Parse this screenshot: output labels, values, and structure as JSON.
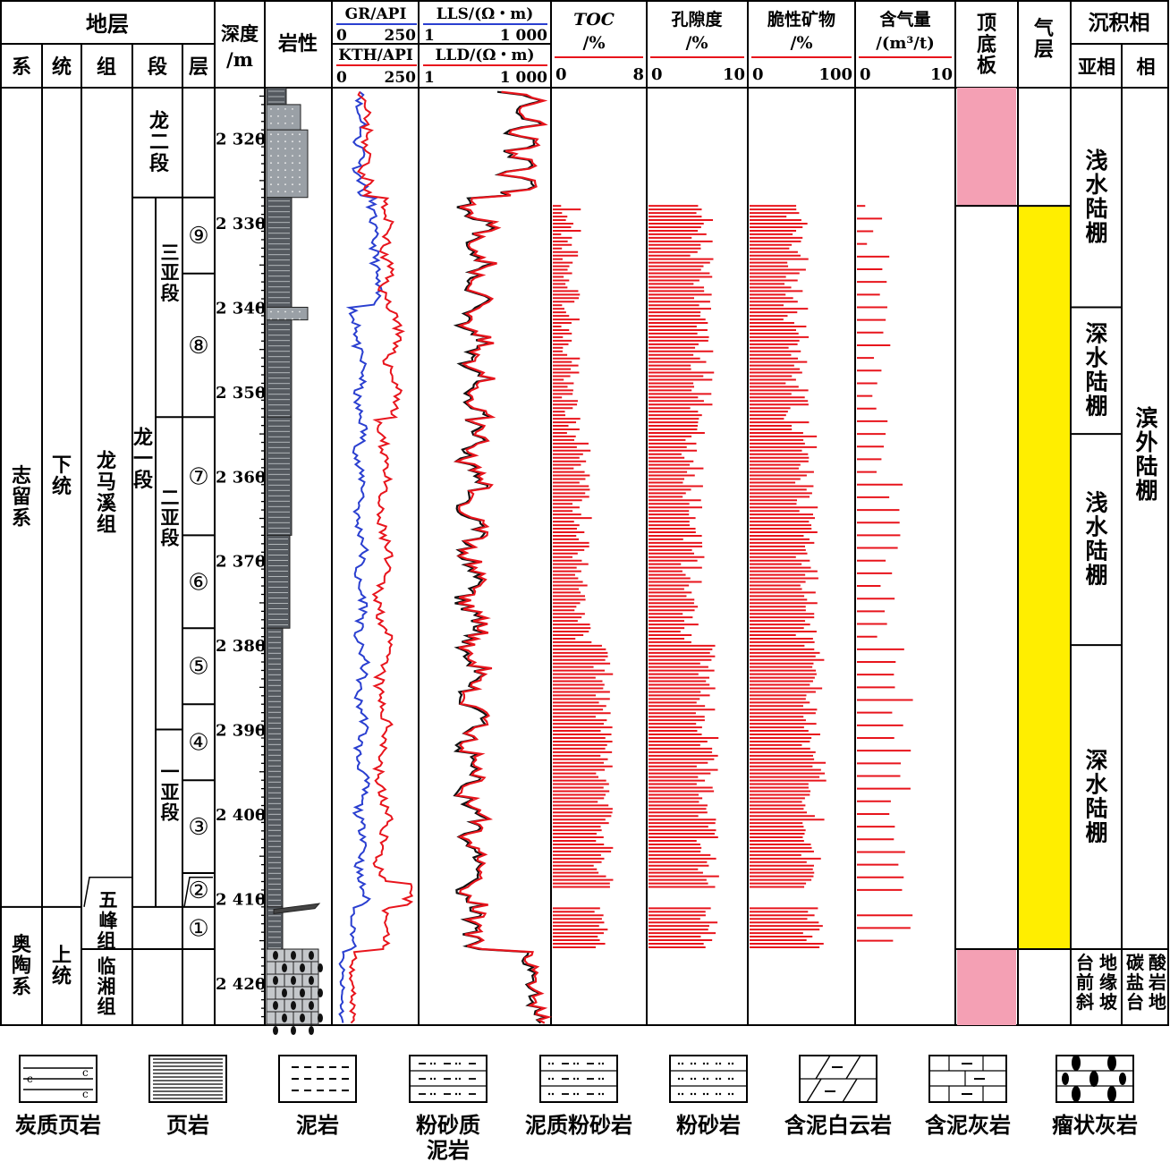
{
  "header": {
    "strata_group": "地层",
    "strata_cols": [
      "系",
      "统",
      "组",
      "段",
      "层"
    ],
    "depth": [
      "深度",
      "/m"
    ],
    "lithology": "岩性",
    "gr": "GR/API",
    "gr_range": [
      "0",
      "250"
    ],
    "kth": "KTH/API",
    "kth_range": [
      "0",
      "250"
    ],
    "lls": "LLS/(Ω・m)",
    "lls_range": [
      "1",
      "1 000"
    ],
    "lld": "LLD/(Ω・m)",
    "lld_range": [
      "1",
      "1 000"
    ],
    "toc": [
      "TOC",
      "/%"
    ],
    "toc_range": [
      "0",
      "8"
    ],
    "porosity": [
      "孔隙度",
      "/%"
    ],
    "porosity_range": [
      "0",
      "10"
    ],
    "brittle": [
      "脆性矿物",
      "/%"
    ],
    "brittle_range": [
      "0",
      "100"
    ],
    "gas": [
      "含气量",
      "/(m³/t)"
    ],
    "gas_range": [
      "0",
      "10"
    ],
    "roof_floor": "顶底板",
    "gas_layer": "气层",
    "facies_group": "沉积相",
    "subfacies": "亚相",
    "facies": "相"
  },
  "strata": {
    "system": [
      {
        "label": "志留系",
        "top": 2314,
        "bot": 2411
      },
      {
        "label": "奥陶系",
        "top": 2411,
        "bot": 2425
      }
    ],
    "series": [
      {
        "label": "下统",
        "top": 2314,
        "bot": 2411
      },
      {
        "label": "上统",
        "top": 2411,
        "bot": 2425
      }
    ],
    "formation": [
      {
        "label": "龙马溪组",
        "top": 2314,
        "bot": 2411
      },
      {
        "label": "五峰组",
        "top": 2411,
        "bot": 2416
      },
      {
        "label": "临湘组",
        "top": 2416,
        "bot": 2425
      }
    ],
    "member": [
      {
        "label": "龙二段",
        "top": 2314,
        "bot": 2327
      },
      {
        "label": "龙一段",
        "top": 2327,
        "bot": 2411
      }
    ],
    "submember": [
      {
        "label": "三亚段",
        "top": 2327,
        "bot": 2353
      },
      {
        "label": "二亚段",
        "top": 2353,
        "bot": 2390
      },
      {
        "label": "一亚段",
        "top": 2390,
        "bot": 2411
      }
    ],
    "layers": [
      {
        "label": "⑨",
        "top": 2327,
        "bot": 2336
      },
      {
        "label": "⑧",
        "top": 2336,
        "bot": 2353
      },
      {
        "label": "⑦",
        "top": 2353,
        "bot": 2367
      },
      {
        "label": "⑥",
        "top": 2367,
        "bot": 2378
      },
      {
        "label": "⑤",
        "top": 2378,
        "bot": 2387
      },
      {
        "label": "④",
        "top": 2387,
        "bot": 2396
      },
      {
        "label": "③",
        "top": 2396,
        "bot": 2407
      },
      {
        "label": "②",
        "top": 2407,
        "bot": 2411
      },
      {
        "label": "①",
        "top": 2411,
        "bot": 2416
      }
    ]
  },
  "depth_axis": {
    "top": 2314,
    "bottom": 2425,
    "ticks": [
      2320,
      2330,
      2340,
      2350,
      2360,
      2370,
      2380,
      2390,
      2400,
      2410,
      2420
    ],
    "tick_labels": [
      "2 320",
      "2 330",
      "2 340",
      "2 350",
      "2 360",
      "2 370",
      "2 380",
      "2 390",
      "2 400",
      "2 410",
      "2 420"
    ]
  },
  "roof_floor": [
    {
      "top": 2314,
      "bot": 2328,
      "color": "#f4a0b4"
    },
    {
      "top": 2416,
      "bot": 2425,
      "color": "#f4a0b4"
    }
  ],
  "gas_layer": {
    "top": 2328,
    "bot": 2416,
    "color": "#ffee00"
  },
  "subfacies": [
    {
      "label": "浅水陆棚",
      "top": 2314,
      "bot": 2340
    },
    {
      "label": "深水陆棚",
      "top": 2340,
      "bot": 2355
    },
    {
      "label": "浅水陆棚",
      "top": 2355,
      "bot": 2380
    },
    {
      "label": "深水陆棚",
      "top": 2380,
      "bot": 2416
    },
    {
      "label": "台地前缘斜坡",
      "top": 2416,
      "bot": 2425
    }
  ],
  "facies": [
    {
      "label": "滨外陆棚",
      "top": 2314,
      "bot": 2416
    },
    {
      "label": "碳酸盐岩台地",
      "top": 2416,
      "bot": 2425
    }
  ],
  "colors": {
    "gr": "#2a3fd0",
    "kth": "#e8141c",
    "lls": "#111111",
    "lld": "#e8141c",
    "bars": "#e8141c",
    "shade": "#555a60",
    "light": "#9aa0a6"
  },
  "legend": [
    {
      "name": "carbonaceous-shale",
      "label": "炭质页岩"
    },
    {
      "name": "shale",
      "label": "页岩"
    },
    {
      "name": "mudstone",
      "label": "泥岩"
    },
    {
      "name": "silty-mudstone",
      "label": "粉砂质泥岩"
    },
    {
      "name": "argillaceous-siltstone",
      "label": "泥质粉砂岩"
    },
    {
      "name": "siltstone",
      "label": "粉砂岩"
    },
    {
      "name": "argillaceous-dolomite",
      "label": "含泥白云岩"
    },
    {
      "name": "argillaceous-limestone",
      "label": "含泥灰岩"
    },
    {
      "name": "nodular-limestone",
      "label": "瘤状灰岩"
    }
  ]
}
